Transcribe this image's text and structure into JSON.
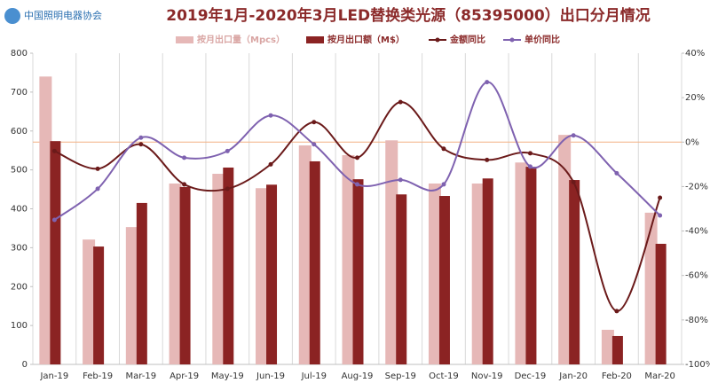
{
  "chart_data": {
    "type": "bar-line",
    "title": "2019年1月-2020年3月LED替换类光源（85395000）出口分月情况",
    "logo": "中国照明电器协会",
    "categories": [
      "Jan-19",
      "Feb-19",
      "Mar-19",
      "Apr-19",
      "May-19",
      "Jun-19",
      "Jul-19",
      "Aug-19",
      "Sep-19",
      "Oct-19",
      "Nov-19",
      "Dec-19",
      "Jan-20",
      "Feb-20",
      "Mar-20"
    ],
    "series": [
      {
        "name": "按月出口量（Mpcs）",
        "type": "bar",
        "color": "#e6b8b7",
        "values": [
          740,
          321,
          353,
          465,
          490,
          453,
          563,
          538,
          576,
          465,
          465,
          519,
          590,
          89,
          390
        ]
      },
      {
        "name": "按月出口额（M$）",
        "type": "bar",
        "color": "#8b2323",
        "values": [
          574,
          303,
          415,
          456,
          506,
          462,
          522,
          476,
          437,
          433,
          478,
          508,
          474,
          73,
          310
        ]
      },
      {
        "name": "金额同比",
        "type": "line",
        "axis": "y2",
        "color": "#6b1a1a",
        "values": [
          -4,
          -12,
          -1,
          -19,
          -21,
          -10,
          9,
          -7,
          18,
          -3,
          -8,
          -5,
          -18,
          -76,
          -25
        ]
      },
      {
        "name": "单价同比",
        "type": "line",
        "axis": "y2",
        "color": "#7f62b0",
        "values": [
          -35,
          -21,
          2,
          -7,
          -4,
          12,
          -1,
          -19,
          -17,
          -19,
          27,
          -11,
          3,
          -14,
          -33
        ]
      }
    ],
    "ylim": [
      0,
      800
    ],
    "yticks": [
      0,
      100,
      200,
      300,
      400,
      500,
      600,
      700,
      800
    ],
    "y2lim": [
      -100,
      40
    ],
    "y2ticks": [
      {
        "value": -100,
        "label": "-100%"
      },
      {
        "value": -80,
        "label": "-80%"
      },
      {
        "value": -60,
        "label": "-60%"
      },
      {
        "value": -40,
        "label": "-40%"
      },
      {
        "value": -20,
        "label": "-20%"
      },
      {
        "value": 0,
        "label": "0%"
      },
      {
        "value": 20,
        "label": "20%"
      },
      {
        "value": 40,
        "label": "40%"
      }
    ]
  }
}
